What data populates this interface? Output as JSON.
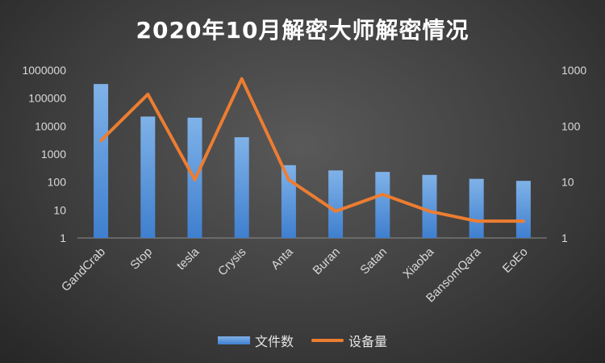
{
  "chart_data": {
    "type": "bar",
    "title": "2020年10月解密大师解密情况",
    "categories": [
      "GandCrab",
      "Stop",
      "tesla",
      "Crysis",
      "Anta",
      "Buran",
      "Satan",
      "Xiaoba",
      "BansomQara",
      "EoEo"
    ],
    "series": [
      {
        "name": "文件数",
        "type": "bar",
        "axis": "left",
        "color": "#5b9bd5",
        "values": [
          320000,
          22000,
          20000,
          4000,
          400,
          260,
          230,
          180,
          130,
          110
        ]
      },
      {
        "name": "设备量",
        "type": "line",
        "axis": "right",
        "color": "#ed7d31",
        "values": [
          55,
          370,
          11,
          700,
          11,
          3,
          6,
          3,
          2,
          2
        ]
      }
    ],
    "y_left": {
      "scale": "log",
      "ylim": [
        1,
        1000000
      ],
      "ticks": [
        "1",
        "10",
        "100",
        "1000",
        "10000",
        "100000",
        "1000000"
      ]
    },
    "y_right": {
      "scale": "log",
      "ylim": [
        1,
        1000
      ],
      "ticks": [
        "1",
        "10",
        "100",
        "1000"
      ]
    },
    "legend_position": "bottom",
    "grid": false
  }
}
